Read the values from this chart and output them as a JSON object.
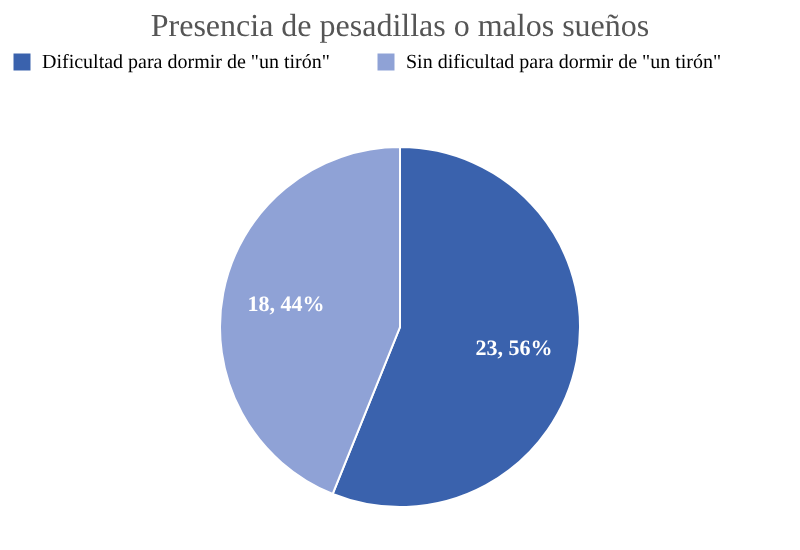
{
  "chart_data": {
    "type": "pie",
    "title": "Presencia de pesadillas o malos sueños",
    "categories": [
      "Dificultad para dormir de \"un tirón\"",
      "Sin dificultad para dormir de \"un tirón\""
    ],
    "values": [
      23,
      18
    ],
    "colors": [
      "#3a62ad",
      "#8fa2d6"
    ],
    "value_labels": [
      "23, 56%",
      "18, 44%"
    ],
    "legend": "top"
  }
}
